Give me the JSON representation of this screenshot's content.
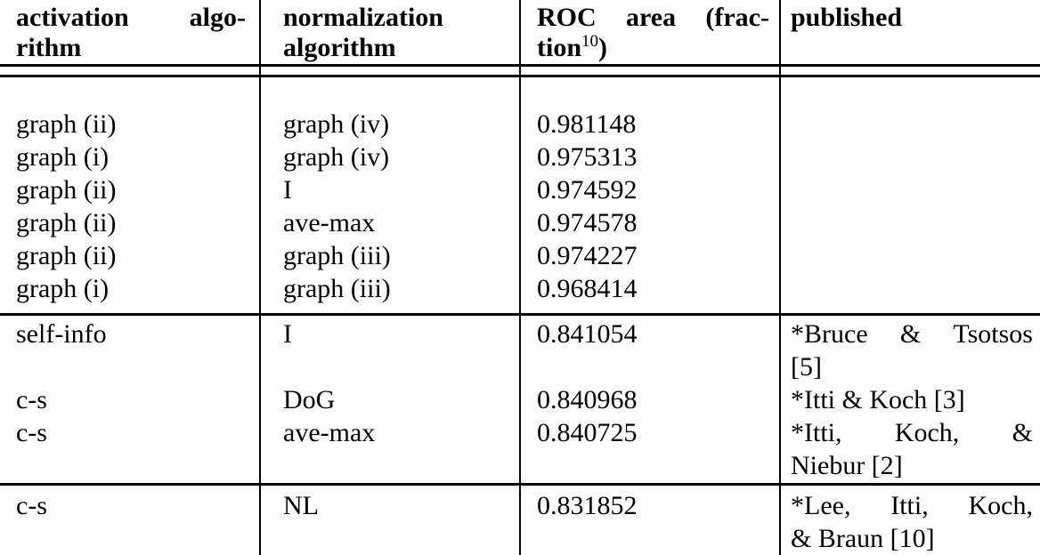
{
  "colors": {
    "text": "#000000",
    "background": "#ffffff",
    "rule": "#000000"
  },
  "table": {
    "header": {
      "col1": {
        "line1_words": [
          "activation",
          "algo-"
        ],
        "line2": "rithm"
      },
      "col2": {
        "line1": "normalization",
        "line2": "algorithm"
      },
      "col3": {
        "line1_words": [
          "ROC",
          "area",
          "(frac-"
        ],
        "line2_base": "tion",
        "line2_sup": "10",
        "line2_close": ")"
      },
      "col4": {
        "line1": "published"
      }
    },
    "columns": [
      "activation algorithm",
      "normalization algorithm",
      "ROC area (fraction^10)",
      "published"
    ],
    "sections": [
      {
        "rows": [
          {
            "activation": "graph (ii)",
            "normalization": "graph (iv)",
            "roc": "0.981148",
            "published": []
          },
          {
            "activation": "graph (i)",
            "normalization": "graph (iv)",
            "roc": "0.975313",
            "published": []
          },
          {
            "activation": "graph (ii)",
            "normalization": "I",
            "roc": "0.974592",
            "published": []
          },
          {
            "activation": "graph (ii)",
            "normalization": "ave-max",
            "roc": "0.974578",
            "published": []
          },
          {
            "activation": "graph (ii)",
            "normalization": "graph (iii)",
            "roc": "0.974227",
            "published": []
          },
          {
            "activation": "graph (i)",
            "normalization": "graph (iii)",
            "roc": "0.968414",
            "published": []
          }
        ]
      },
      {
        "rows": [
          {
            "activation": "self-info",
            "normalization": "I",
            "roc": "0.841054",
            "published": [
              {
                "text": "*Bruce & Tsotsos",
                "justify": true
              },
              {
                "text": "[5]",
                "justify": false
              }
            ]
          },
          {
            "activation": "c-s",
            "normalization": "DoG",
            "roc": "0.840968",
            "published": [
              {
                "text": "*Itti & Koch [3]",
                "justify": false
              }
            ]
          },
          {
            "activation": "c-s",
            "normalization": "ave-max",
            "roc": "0.840725",
            "published": [
              {
                "text": "*Itti, Koch, &",
                "justify": true
              },
              {
                "text": "Niebur [2]",
                "justify": false
              }
            ]
          }
        ]
      },
      {
        "rows": [
          {
            "activation": "c-s",
            "normalization": "NL",
            "roc": "0.831852",
            "published": [
              {
                "text": "*Lee, Itti, Koch,",
                "justify": true
              },
              {
                "text": "& Braun [10]",
                "justify": false
              }
            ]
          }
        ]
      }
    ]
  }
}
